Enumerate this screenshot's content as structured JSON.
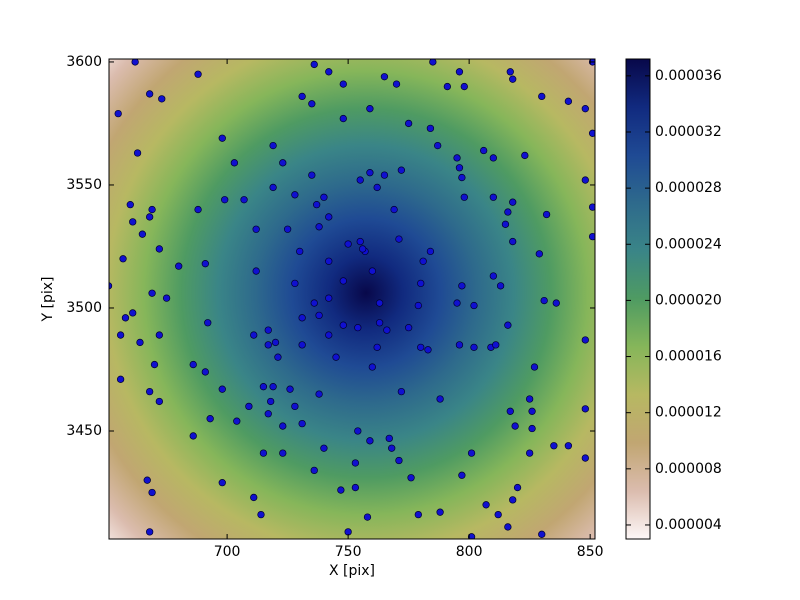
{
  "chart_data": {
    "type": "scatter",
    "xlabel": "X [pix]",
    "ylabel": "Y [pix]",
    "xlim": [
      651.2,
      852.0
    ],
    "ylim": [
      3406.1,
      3601.2
    ],
    "xticks": [
      700,
      750,
      800,
      850
    ],
    "yticks": [
      3450,
      3500,
      3550,
      3600
    ],
    "marker_color": "#1010d0",
    "colormap": [
      "#fdf7f7",
      "#dbbcae",
      "#c1a672",
      "#b7b862",
      "#86b65a",
      "#4f9b62",
      "#3a8587",
      "#2e6a8c",
      "#1f4a94",
      "#112a7f",
      "#08084a"
    ],
    "zlim": [
      3e-06,
      3.72e-05
    ],
    "zticks": [
      {
        "value": 4e-06,
        "label": "0.000004"
      },
      {
        "value": 8e-06,
        "label": "0.000008"
      },
      {
        "value": 1.2e-05,
        "label": "0.000012"
      },
      {
        "value": 1.6e-05,
        "label": "0.000016"
      },
      {
        "value": 2e-05,
        "label": "0.000020"
      },
      {
        "value": 2.4e-05,
        "label": "0.000024"
      },
      {
        "value": 2.8e-05,
        "label": "0.000028"
      },
      {
        "value": 3.2e-05,
        "label": "0.000032"
      },
      {
        "value": 3.6e-05,
        "label": "0.000036"
      }
    ],
    "x": [
      662,
      688,
      668,
      673,
      655,
      663,
      698,
      703,
      719,
      723,
      699,
      707,
      719,
      728,
      688,
      669,
      660,
      661,
      665,
      668,
      672,
      680,
      691,
      657,
      651,
      658,
      656,
      661,
      669,
      675,
      664,
      672,
      670,
      686,
      692,
      691,
      656,
      668,
      672,
      693,
      686,
      698,
      704,
      709,
      698,
      667,
      669,
      668,
      711,
      714,
      715,
      723,
      723,
      731,
      718,
      717,
      715,
      719,
      726,
      728,
      738,
      740,
      736,
      747,
      750,
      753,
      753,
      754,
      759,
      758,
      767,
      768,
      771,
      776,
      779,
      788,
      772,
      711,
      717,
      717,
      721,
      720,
      731,
      731,
      728,
      725,
      712,
      712,
      730,
      735,
      737,
      740,
      738,
      742,
      742,
      742,
      736,
      738,
      742,
      745,
      748,
      750,
      755,
      757,
      760,
      760,
      748,
      754,
      756,
      763,
      762,
      763,
      755,
      759,
      762,
      765,
      772,
      769,
      771,
      780,
      779,
      775,
      780,
      783,
      781,
      784,
      797,
      796,
      795,
      802,
      802,
      809,
      810,
      813,
      816,
      811,
      825,
      827,
      831,
      836,
      832,
      829,
      818,
      816,
      815,
      810,
      810,
      806,
      798,
      797,
      796,
      795,
      787,
      784,
      775,
      770,
      765,
      759,
      748,
      748,
      742,
      736,
      735,
      731,
      785,
      796,
      791,
      798,
      817,
      818,
      830,
      841,
      848,
      823,
      818,
      848,
      851,
      851,
      851,
      851,
      848,
      848,
      848,
      835,
      841,
      826,
      826,
      825,
      817,
      819,
      820,
      818,
      816,
      807,
      812,
      797,
      801,
      788,
      830,
      801,
      766
    ],
    "values": [
      3600,
      3595,
      3587,
      3585,
      3579,
      3563,
      3569,
      3559,
      3566,
      3559,
      3544,
      3544,
      3549,
      3546,
      3540,
      3540,
      3542,
      3535,
      3530,
      3537,
      3524,
      3517,
      3518,
      3520,
      3509,
      3496,
      3489,
      3498,
      3506,
      3504,
      3486,
      3489,
      3477,
      3477,
      3494,
      3474,
      3471,
      3466,
      3462,
      3455,
      3448,
      3467,
      3454,
      3460,
      3429,
      3430,
      3425,
      3409,
      3423,
      3416,
      3441,
      3441,
      3452,
      3453,
      3462,
      3457,
      3468,
      3468,
      3467,
      3460,
      3465,
      3443,
      3434,
      3426,
      3409,
      3427,
      3437,
      3450,
      3446,
      3415,
      3447,
      3443,
      3438,
      3431,
      3416,
      3463,
      3466,
      3489,
      3491,
      3485,
      3480,
      3486,
      3485,
      3496,
      3510,
      3532,
      3532,
      3515,
      3523,
      3554,
      3542,
      3545,
      3533,
      3537,
      3519,
      3489,
      3502,
      3497,
      3504,
      3480,
      3493,
      3526,
      3527,
      3523,
      3515,
      3476,
      3511,
      3492,
      3524,
      3494,
      3484,
      3502,
      3552,
      3555,
      3549,
      3554,
      3556,
      3540,
      3528,
      3510,
      3501,
      3492,
      3484,
      3483,
      3519,
      3523,
      3509,
      3485,
      3502,
      3501,
      3484,
      3484,
      3513,
      3509,
      3493,
      3485,
      3463,
      3476,
      3503,
      3502,
      3538,
      3522,
      3527,
      3539,
      3534,
      3545,
      3561,
      3564,
      3545,
      3553,
      3557,
      3561,
      3566,
      3573,
      3575,
      3591,
      3594,
      3581,
      3577,
      3591,
      3596,
      3599,
      3583,
      3586,
      3600,
      3596,
      3590,
      3590,
      3596,
      3593,
      3586,
      3584,
      3581,
      3562,
      3543,
      3552,
      3600,
      3571,
      3541,
      3529,
      3487,
      3459,
      3439,
      3444,
      3444,
      3458,
      3451,
      3441,
      3458,
      3452,
      3427,
      3422,
      3411,
      3420,
      3416,
      3432,
      3441,
      3417,
      3408,
      3407,
      3491
    ]
  }
}
